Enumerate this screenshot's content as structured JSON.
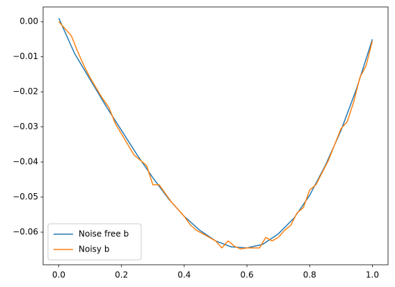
{
  "chart_data": {
    "type": "line",
    "x": [
      0,
      0.05,
      0.1,
      0.15,
      0.2,
      0.25,
      0.3,
      0.35,
      0.4,
      0.45,
      0.5,
      0.55,
      0.6,
      0.65,
      0.7,
      0.75,
      0.8,
      0.85,
      0.9,
      0.95,
      1.0
    ],
    "series": [
      {
        "name": "Noise free b",
        "color": "#1f77b4",
        "values": [
          0.001,
          -0.009,
          -0.0165,
          -0.024,
          -0.031,
          -0.038,
          -0.0445,
          -0.0505,
          -0.0555,
          -0.0595,
          -0.0625,
          -0.0642,
          -0.0645,
          -0.0635,
          -0.0605,
          -0.056,
          -0.0495,
          -0.041,
          -0.031,
          -0.019,
          -0.005
        ]
      },
      {
        "name": "Noisy b",
        "color": "#ff7f0e",
        "x": [
          0,
          0.02,
          0.04,
          0.06,
          0.08,
          0.1,
          0.12,
          0.14,
          0.16,
          0.18,
          0.2,
          0.22,
          0.24,
          0.26,
          0.28,
          0.3,
          0.32,
          0.34,
          0.36,
          0.38,
          0.4,
          0.42,
          0.44,
          0.46,
          0.48,
          0.5,
          0.52,
          0.54,
          0.56,
          0.58,
          0.6,
          0.62,
          0.64,
          0.66,
          0.68,
          0.7,
          0.72,
          0.74,
          0.76,
          0.78,
          0.8,
          0.82,
          0.84,
          0.86,
          0.88,
          0.9,
          0.92,
          0.94,
          0.96,
          0.98,
          1.0
        ],
        "values": [
          0.0,
          -0.002,
          -0.004,
          -0.0085,
          -0.0125,
          -0.016,
          -0.019,
          -0.022,
          -0.0245,
          -0.029,
          -0.032,
          -0.035,
          -0.038,
          -0.0395,
          -0.041,
          -0.0465,
          -0.0465,
          -0.049,
          -0.0515,
          -0.0535,
          -0.0555,
          -0.058,
          -0.0595,
          -0.0605,
          -0.0615,
          -0.0625,
          -0.0645,
          -0.0625,
          -0.064,
          -0.0648,
          -0.0645,
          -0.0645,
          -0.0645,
          -0.0615,
          -0.0625,
          -0.0615,
          -0.0595,
          -0.058,
          -0.0545,
          -0.053,
          -0.048,
          -0.0465,
          -0.043,
          -0.0395,
          -0.035,
          -0.0305,
          -0.0285,
          -0.023,
          -0.016,
          -0.0125,
          -0.0055
        ]
      }
    ],
    "xlim": [
      -0.05,
      1.05
    ],
    "ylim": [
      -0.0693,
      0.0042
    ],
    "xticks": [
      {
        "value": 0,
        "label": "0.0"
      },
      {
        "value": 0.2,
        "label": "0.2"
      },
      {
        "value": 0.4,
        "label": "0.4"
      },
      {
        "value": 0.6,
        "label": "0.6"
      },
      {
        "value": 0.8,
        "label": "0.8"
      },
      {
        "value": 1.0,
        "label": "1.0"
      }
    ],
    "yticks": [
      {
        "value": 0,
        "label": "0.00"
      },
      {
        "value": -0.01,
        "label": "−0.01"
      },
      {
        "value": -0.02,
        "label": "−0.02"
      },
      {
        "value": -0.03,
        "label": "−0.03"
      },
      {
        "value": -0.04,
        "label": "−0.04"
      },
      {
        "value": -0.05,
        "label": "−0.05"
      },
      {
        "value": -0.06,
        "label": "−0.06"
      }
    ],
    "legend": "lower left",
    "grid": false
  }
}
